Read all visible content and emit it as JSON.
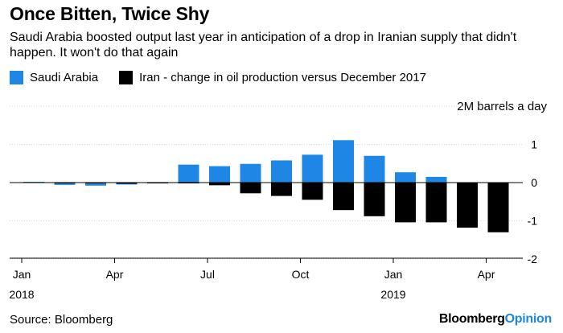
{
  "header": {
    "title": "Once Bitten, Twice Shy",
    "subtitle": "Saudi Arabia boosted output last year in anticipation of a drop in Iranian supply that didn't happen. It won't do that again"
  },
  "legend": [
    {
      "label": "Saudi Arabia",
      "color": "#1e87e5"
    },
    {
      "label": "Iran - change in oil production versus December 2017",
      "color": "#000000"
    }
  ],
  "footer": {
    "source": "Source: Bloomberg",
    "brand_main": "Bloomberg",
    "brand_accent": "Opinion"
  },
  "chart_data": {
    "type": "bar",
    "title": "Once Bitten, Twice Shy",
    "ylabel": "2M barrels a day",
    "ylim": [
      -2,
      2
    ],
    "yticks": [
      1,
      0,
      -1,
      -2
    ],
    "grid": true,
    "x": [
      "2018-01",
      "2018-02",
      "2018-03",
      "2018-04",
      "2018-05",
      "2018-06",
      "2018-07",
      "2018-08",
      "2018-09",
      "2018-10",
      "2018-11",
      "2018-12",
      "2019-01",
      "2019-02",
      "2019-03",
      "2019-04"
    ],
    "x_tick_labels": [
      {
        "month": "2018-01",
        "label": "Jan",
        "year": "2018"
      },
      {
        "month": "2018-04",
        "label": "Apr",
        "year": ""
      },
      {
        "month": "2018-07",
        "label": "Jul",
        "year": ""
      },
      {
        "month": "2018-10",
        "label": "Oct",
        "year": ""
      },
      {
        "month": "2019-01",
        "label": "Jan",
        "year": "2019"
      },
      {
        "month": "2019-04",
        "label": "Apr",
        "year": ""
      }
    ],
    "series": [
      {
        "name": "Saudi Arabia",
        "color": "#1e87e5",
        "values": [
          0.02,
          -0.06,
          -0.08,
          -0.05,
          0.01,
          0.47,
          0.43,
          0.49,
          0.58,
          0.73,
          1.11,
          0.7,
          0.27,
          0.15,
          -0.12,
          -0.15
        ]
      },
      {
        "name": "Iran - change in oil production versus December 2017",
        "color": "#000000",
        "values": [
          0.01,
          -0.02,
          0.0,
          -0.03,
          0.0,
          -0.02,
          -0.07,
          -0.28,
          -0.35,
          -0.45,
          -0.72,
          -0.88,
          -1.04,
          -1.04,
          -1.18,
          -1.3
        ]
      }
    ]
  }
}
